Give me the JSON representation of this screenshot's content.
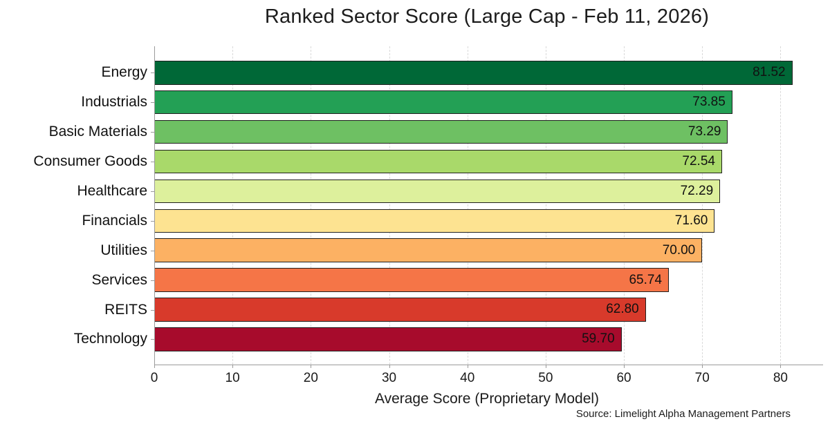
{
  "chart_data": {
    "type": "bar",
    "orientation": "horizontal",
    "title": "Ranked Sector Score (Large Cap - Feb 11, 2026)",
    "xlabel": "Average Score (Proprietary Model)",
    "source": "Source: Limelight Alpha Management Partners",
    "categories": [
      "Energy",
      "Industrials",
      "Basic Materials",
      "Consumer Goods",
      "Healthcare",
      "Financials",
      "Utilities",
      "Services",
      "REITS",
      "Technology"
    ],
    "values": [
      81.52,
      73.85,
      73.29,
      72.54,
      72.29,
      71.6,
      70.0,
      65.74,
      62.8,
      59.7
    ],
    "value_labels": [
      "81.52",
      "73.85",
      "73.29",
      "72.54",
      "72.29",
      "71.60",
      "70.00",
      "65.74",
      "62.80",
      "59.70"
    ],
    "bar_colors": [
      "#006837",
      "#23a055",
      "#6ec063",
      "#a9d96a",
      "#ddf09c",
      "#fde391",
      "#fcb163",
      "#f57547",
      "#d83a2b",
      "#a70b2c"
    ],
    "bar_edge_color": "#1f1f1f",
    "xlim": [
      0,
      85
    ],
    "xticks": [
      0,
      10,
      20,
      30,
      40,
      50,
      60,
      70,
      80
    ],
    "grid": "vertical-dashed",
    "legend": "none",
    "background_color": "#ffffff"
  }
}
